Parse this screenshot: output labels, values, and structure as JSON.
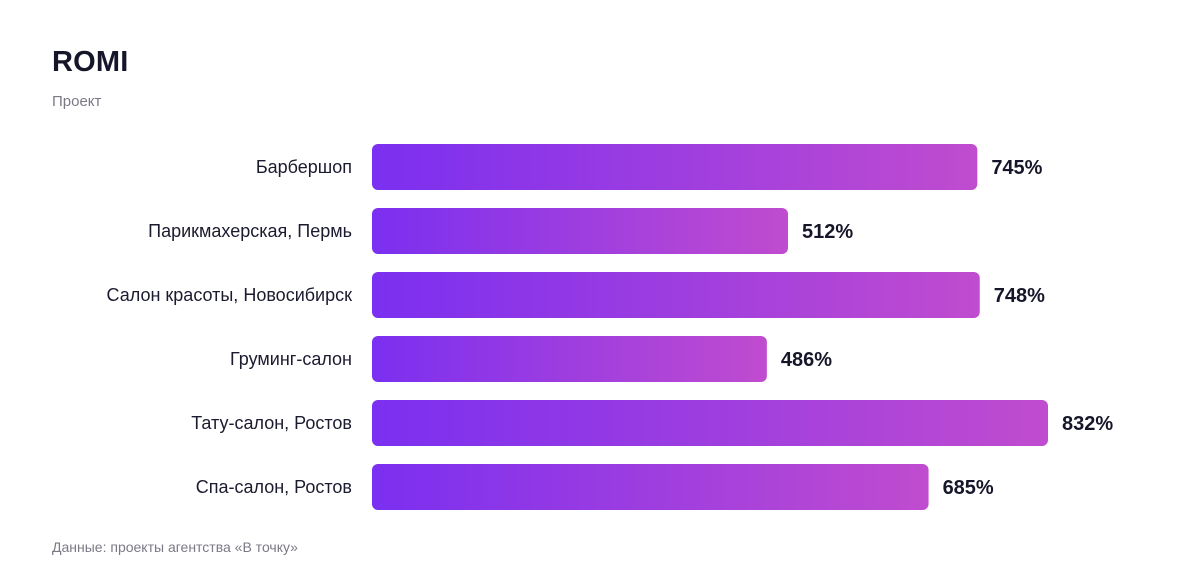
{
  "header": {
    "title": "ROMI",
    "subtitle": "Проект"
  },
  "footer": {
    "source": "Данные: проекты агентства «В точку»"
  },
  "colors": {
    "bar_gradient_start": "#7b2ff0",
    "bar_gradient_end": "#c04ccf",
    "text": "#1b1b2f",
    "muted": "#7a7a86"
  },
  "chart_data": {
    "type": "bar",
    "orientation": "horizontal",
    "title": "ROMI",
    "subtitle": "Проект",
    "categories": [
      "Барбершоп",
      "Парикмахерская, Пермь",
      "Салон красоты, Новосибирск",
      "Груминг-салон",
      "Тату-салон, Ростов",
      "Спа-салон, Ростов"
    ],
    "values": [
      745,
      512,
      748,
      486,
      832,
      685
    ],
    "value_labels": [
      "745%",
      "512%",
      "748%",
      "486%",
      "832%",
      "685%"
    ],
    "unit": "%",
    "grid": false,
    "legend": "none"
  }
}
